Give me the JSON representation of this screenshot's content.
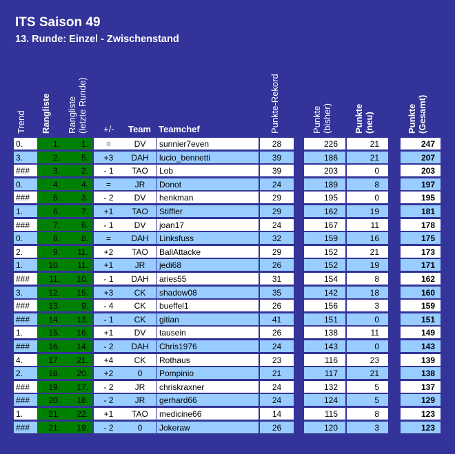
{
  "title": "ITS Saison 49",
  "subtitle": "13. Runde: Einzel - Zwischenstand",
  "headers": {
    "trend": "Trend",
    "rangliste": "Rangliste",
    "rangliste_prev_1": "Rangliste",
    "rangliste_prev_2": "(letzte Runde)",
    "diff": "+/-",
    "team": "Team",
    "teamchef": "Teamchef",
    "rekord": "Punkte-Rekord",
    "bisher_1": "Punkte",
    "bisher_2": "(bisher)",
    "neu_1": "Punkte",
    "neu_2": "(neu)",
    "gesamt_1": "Punkte",
    "gesamt_2": "(Gesamt)"
  },
  "colors": {
    "frame": "#333399",
    "row_light": "#99ccff",
    "rank_green": "#008000"
  },
  "rows": [
    {
      "trend": "0.",
      "rank": "1.",
      "prev": "1.",
      "diff": "=",
      "team": "DV",
      "chef": "sunnier7even",
      "rekord": "28",
      "bisher": "226",
      "neu": "21",
      "gesamt": "247"
    },
    {
      "trend": "3.",
      "rank": "2.",
      "prev": "5.",
      "diff": "+3",
      "team": "DAH",
      "chef": "lucio_bennetti",
      "rekord": "39",
      "bisher": "186",
      "neu": "21",
      "gesamt": "207"
    },
    {
      "trend": "###",
      "rank": "3.",
      "prev": "2.",
      "diff": "- 1",
      "team": "TAO",
      "chef": "Lob",
      "rekord": "39",
      "bisher": "203",
      "neu": "0",
      "gesamt": "203"
    },
    {
      "trend": "0.",
      "rank": "4.",
      "prev": "4.",
      "diff": "=",
      "team": "JR",
      "chef": "Donot",
      "rekord": "24",
      "bisher": "189",
      "neu": "8",
      "gesamt": "197"
    },
    {
      "trend": "###",
      "rank": "5.",
      "prev": "3.",
      "diff": "- 2",
      "team": "DV",
      "chef": "henkman",
      "rekord": "29",
      "bisher": "195",
      "neu": "0",
      "gesamt": "195"
    },
    {
      "trend": "1.",
      "rank": "6.",
      "prev": "7.",
      "diff": "+1",
      "team": "TAO",
      "chef": "Stiffler",
      "rekord": "29",
      "bisher": "162",
      "neu": "19",
      "gesamt": "181"
    },
    {
      "trend": "###",
      "rank": "7.",
      "prev": "6.",
      "diff": "- 1",
      "team": "DV",
      "chef": "joan17",
      "rekord": "24",
      "bisher": "167",
      "neu": "11",
      "gesamt": "178"
    },
    {
      "trend": "0.",
      "rank": "8.",
      "prev": "8.",
      "diff": "=",
      "team": "DAH",
      "chef": "Linksfuss",
      "rekord": "32",
      "bisher": "159",
      "neu": "16",
      "gesamt": "175"
    },
    {
      "trend": "2.",
      "rank": "9.",
      "prev": "11.",
      "diff": "+2",
      "team": "TAO",
      "chef": "BallAttacke",
      "rekord": "29",
      "bisher": "152",
      "neu": "21",
      "gesamt": "173"
    },
    {
      "trend": "1.",
      "rank": "10.",
      "prev": "11.",
      "diff": "+1",
      "team": "JR",
      "chef": "jedi68",
      "rekord": "26",
      "bisher": "152",
      "neu": "19",
      "gesamt": "171"
    },
    {
      "trend": "###",
      "rank": "11.",
      "prev": "10.",
      "diff": "- 1",
      "team": "DAH",
      "chef": "aries55",
      "rekord": "31",
      "bisher": "154",
      "neu": "8",
      "gesamt": "162"
    },
    {
      "trend": "3.",
      "rank": "12.",
      "prev": "15.",
      "diff": "+3",
      "team": "CK",
      "chef": "shadow08",
      "rekord": "35",
      "bisher": "142",
      "neu": "18",
      "gesamt": "160"
    },
    {
      "trend": "###",
      "rank": "13.",
      "prev": "9.",
      "diff": "- 4",
      "team": "CK",
      "chef": "bueffel1",
      "rekord": "26",
      "bisher": "156",
      "neu": "3",
      "gesamt": "159"
    },
    {
      "trend": "###",
      "rank": "14.",
      "prev": "13.",
      "diff": "- 1",
      "team": "CK",
      "chef": "gitian",
      "rekord": "41",
      "bisher": "151",
      "neu": "0",
      "gesamt": "151"
    },
    {
      "trend": "1.",
      "rank": "15.",
      "prev": "16.",
      "diff": "+1",
      "team": "DV",
      "chef": "tausein",
      "rekord": "26",
      "bisher": "138",
      "neu": "11",
      "gesamt": "149"
    },
    {
      "trend": "###",
      "rank": "16.",
      "prev": "14.",
      "diff": "- 2",
      "team": "DAH",
      "chef": "Chris1976",
      "rekord": "24",
      "bisher": "143",
      "neu": "0",
      "gesamt": "143"
    },
    {
      "trend": "4.",
      "rank": "17.",
      "prev": "21.",
      "diff": "+4",
      "team": "CK",
      "chef": "Rothaus",
      "rekord": "23",
      "bisher": "116",
      "neu": "23",
      "gesamt": "139"
    },
    {
      "trend": "2.",
      "rank": "18.",
      "prev": "20.",
      "diff": "+2",
      "team": "0",
      "chef": "Pompinio",
      "rekord": "21",
      "bisher": "117",
      "neu": "21",
      "gesamt": "138"
    },
    {
      "trend": "###",
      "rank": "19.",
      "prev": "17.",
      "diff": "- 2",
      "team": "JR",
      "chef": "chriskraxner",
      "rekord": "24",
      "bisher": "132",
      "neu": "5",
      "gesamt": "137"
    },
    {
      "trend": "###",
      "rank": "20.",
      "prev": "18.",
      "diff": "- 2",
      "team": "JR",
      "chef": "gerhard66",
      "rekord": "24",
      "bisher": "124",
      "neu": "5",
      "gesamt": "129"
    },
    {
      "trend": "1.",
      "rank": "21.",
      "prev": "22.",
      "diff": "+1",
      "team": "TAO",
      "chef": "medicine66",
      "rekord": "14",
      "bisher": "115",
      "neu": "8",
      "gesamt": "123"
    },
    {
      "trend": "###",
      "rank": "21.",
      "prev": "19.",
      "diff": "- 2",
      "team": "0",
      "chef": "Jokeraw",
      "rekord": "26",
      "bisher": "120",
      "neu": "3",
      "gesamt": "123"
    }
  ]
}
